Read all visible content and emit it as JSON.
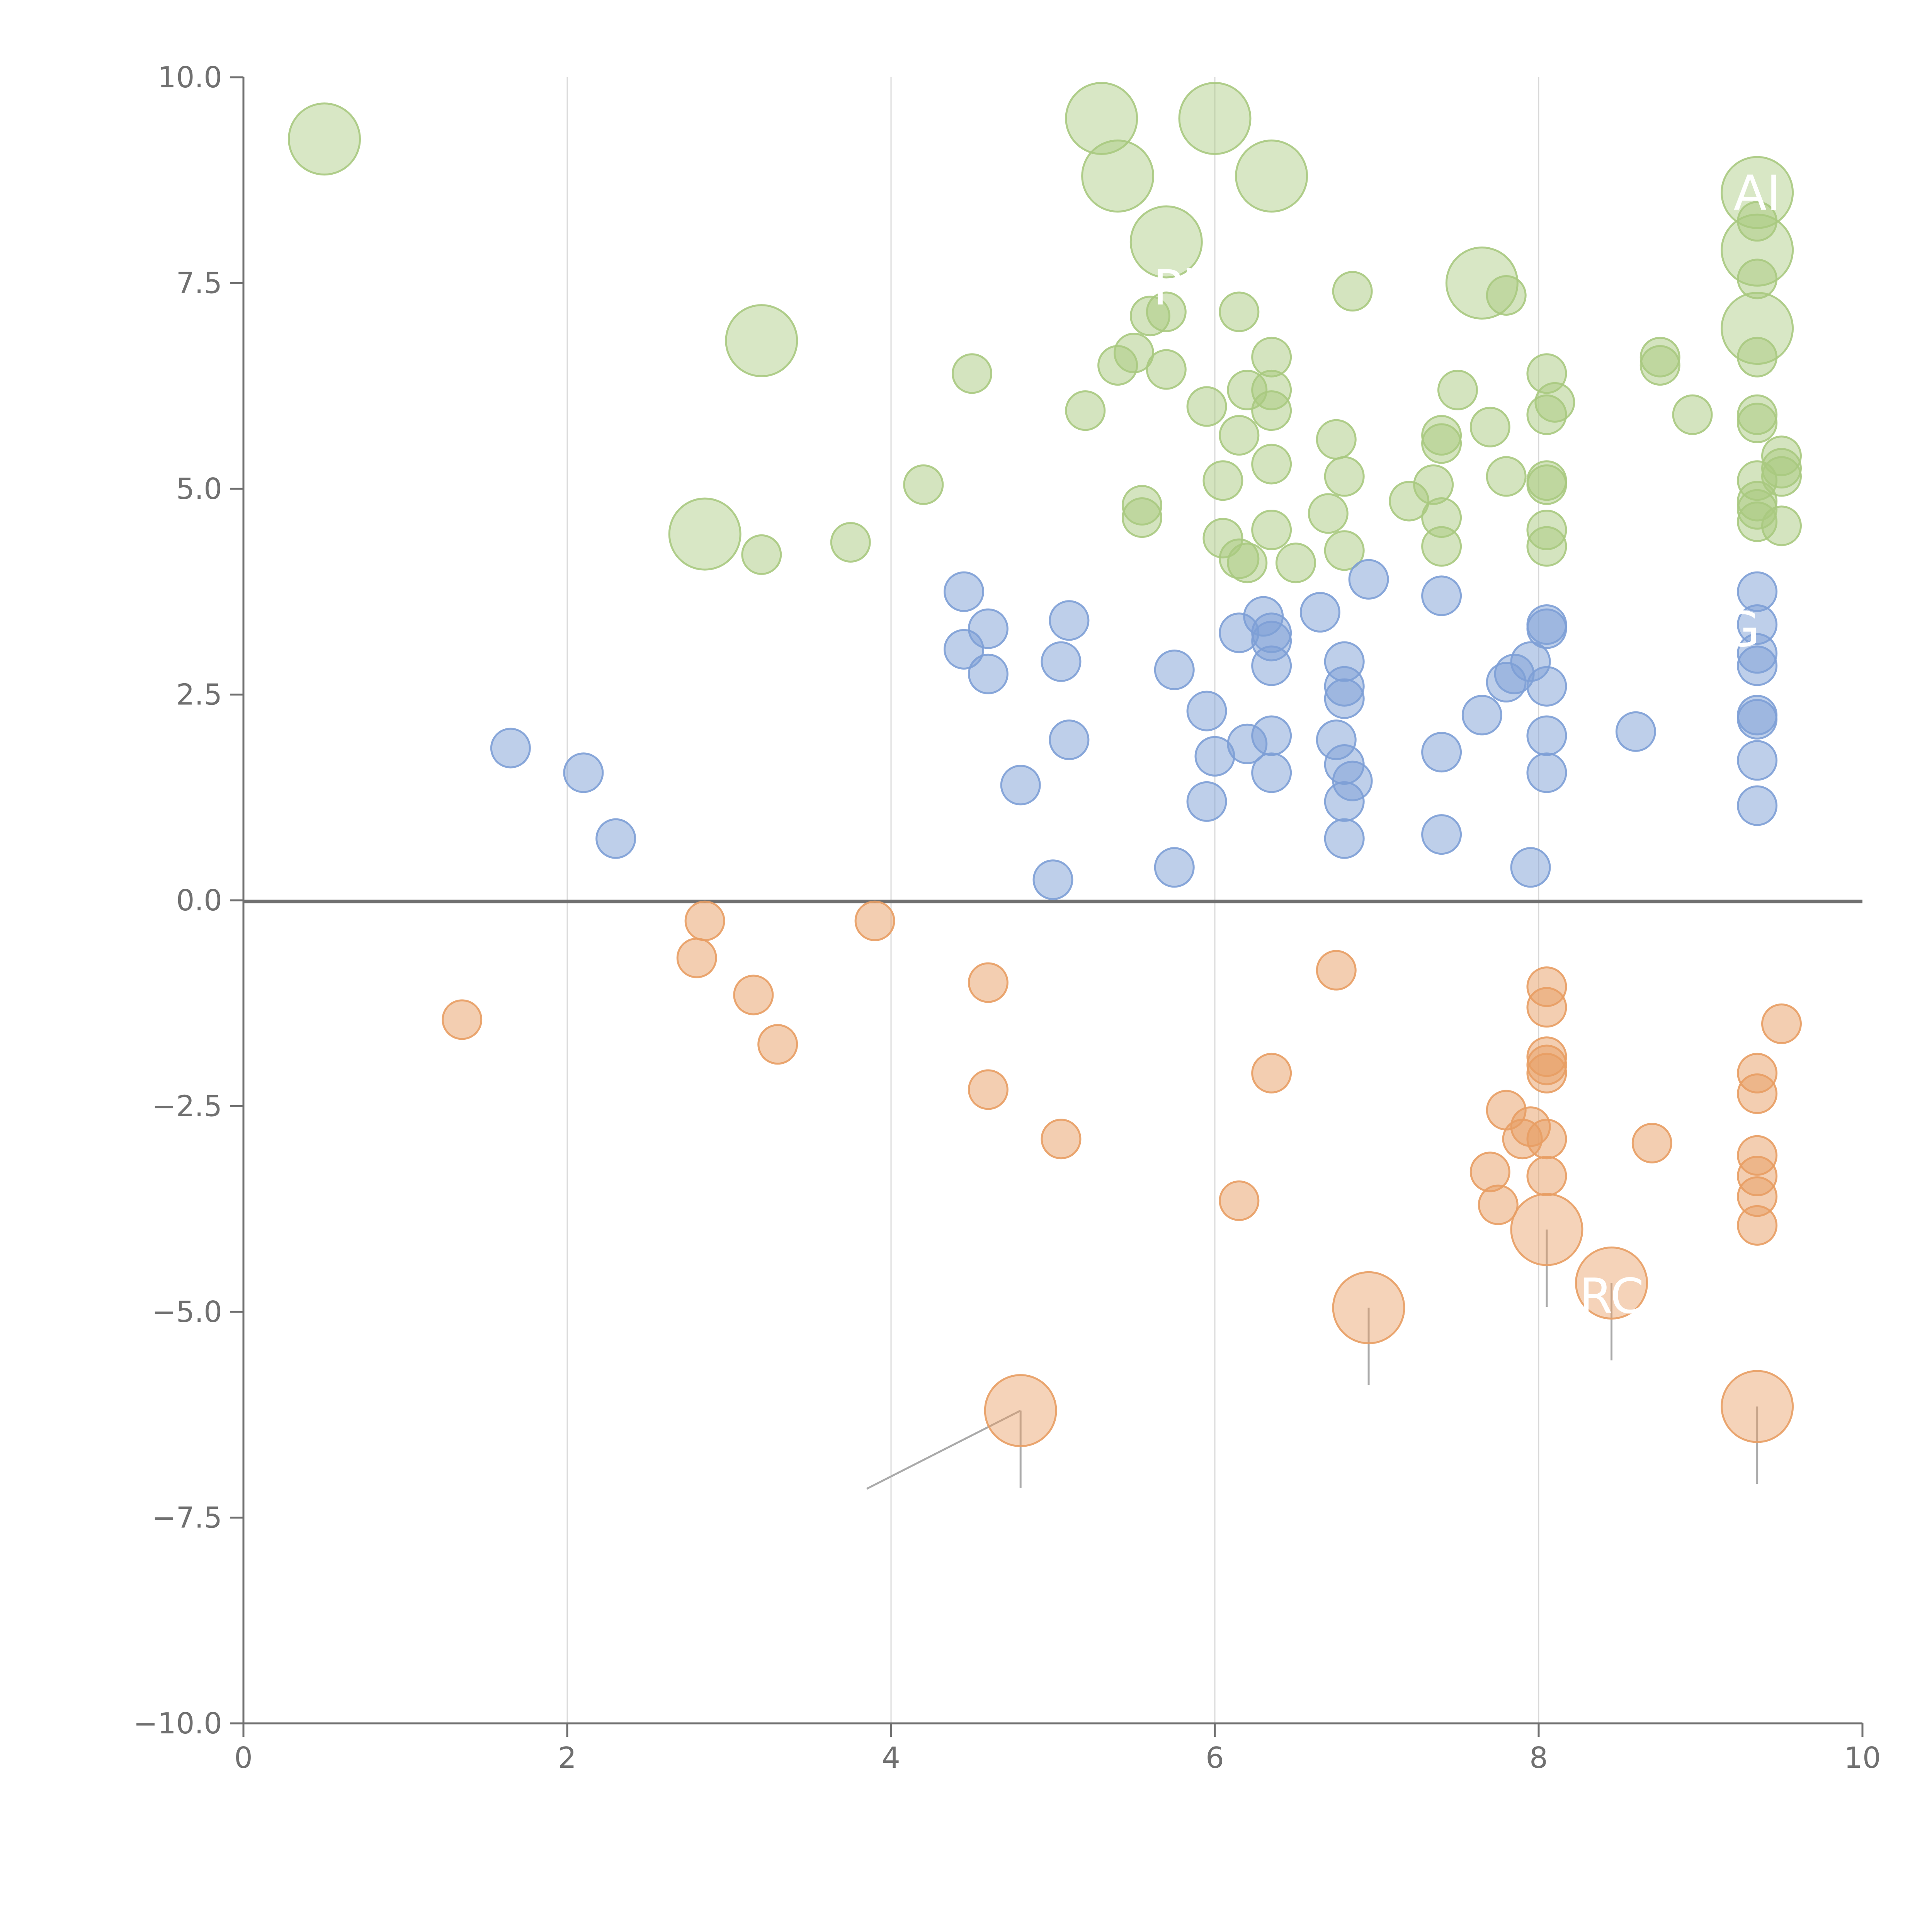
{
  "chart_data": {
    "type": "scatter",
    "title": "",
    "xlabel": "",
    "ylabel": "",
    "xlim": [
      0,
      10
    ],
    "ylim": [
      -10,
      10
    ],
    "x_ticks": [
      "0",
      "2",
      "4",
      "6",
      "8",
      "10"
    ],
    "y_ticks": [
      "10.0",
      "7.5",
      "5.0",
      "2.5",
      "0.0",
      "−2.5",
      "−5.0",
      "−7.5",
      "−10.0"
    ],
    "grid": "vertical lines at x ticks",
    "colors": {
      "green": "#a9c97f",
      "blue": "#7d9fd6",
      "orange": "#e89d63",
      "axis": "#707070",
      "zero_line": "#707070",
      "grid": "#d9d9d9"
    },
    "labels": [
      {
        "text": "AI",
        "x": 9.35,
        "y": 8.6
      },
      {
        "text": "RC",
        "x": 8.45,
        "y": -4.8
      },
      {
        "text": "Pl",
        "x": 5.75,
        "y": 7.45
      },
      {
        "text": "G",
        "x": 9.25,
        "y": 3.3
      }
    ],
    "series": [
      {
        "color": "green",
        "points": [
          [
            0.5,
            9.25,
            1
          ],
          [
            5.3,
            9.5,
            1
          ],
          [
            6.0,
            9.5,
            1
          ],
          [
            5.4,
            8.8,
            1
          ],
          [
            6.35,
            8.8,
            1
          ],
          [
            5.7,
            8.0,
            1
          ],
          [
            7.65,
            7.5,
            1
          ],
          [
            3.2,
            6.8,
            1
          ],
          [
            2.85,
            4.45,
            1
          ],
          [
            9.35,
            8.6,
            1
          ],
          [
            9.35,
            7.9,
            1
          ],
          [
            9.35,
            6.95,
            1
          ],
          [
            6.85,
            7.4,
            0
          ],
          [
            7.8,
            7.35,
            0
          ],
          [
            9.35,
            8.25,
            0
          ],
          [
            9.35,
            7.55,
            0
          ],
          [
            5.6,
            7.1,
            0
          ],
          [
            5.7,
            7.15,
            0
          ],
          [
            6.15,
            7.15,
            0
          ],
          [
            5.5,
            6.65,
            0
          ],
          [
            5.4,
            6.5,
            0
          ],
          [
            5.7,
            6.45,
            0
          ],
          [
            4.5,
            6.4,
            0
          ],
          [
            6.35,
            6.6,
            0
          ],
          [
            6.2,
            6.2,
            0
          ],
          [
            6.35,
            6.2,
            0
          ],
          [
            6.35,
            5.95,
            0
          ],
          [
            5.95,
            6.0,
            0
          ],
          [
            5.2,
            5.95,
            0
          ],
          [
            6.15,
            5.65,
            0
          ],
          [
            6.75,
            5.6,
            0
          ],
          [
            7.5,
            6.2,
            0
          ],
          [
            7.7,
            5.75,
            0
          ],
          [
            7.4,
            5.65,
            0
          ],
          [
            7.4,
            5.55,
            0
          ],
          [
            8.05,
            6.4,
            0
          ],
          [
            8.1,
            6.05,
            0
          ],
          [
            8.05,
            5.9,
            0
          ],
          [
            8.75,
            6.6,
            0
          ],
          [
            8.75,
            6.5,
            0
          ],
          [
            8.95,
            5.9,
            0
          ],
          [
            9.35,
            6.6,
            0
          ],
          [
            9.35,
            5.9,
            0
          ],
          [
            9.35,
            5.8,
            0
          ],
          [
            9.5,
            5.4,
            0
          ],
          [
            9.5,
            5.25,
            0
          ],
          [
            9.5,
            5.15,
            0
          ],
          [
            9.35,
            5.1,
            0
          ],
          [
            9.35,
            4.85,
            0
          ],
          [
            9.35,
            4.75,
            0
          ],
          [
            9.35,
            4.6,
            0
          ],
          [
            9.5,
            4.55,
            0
          ],
          [
            6.35,
            5.3,
            0
          ],
          [
            6.05,
            5.1,
            0
          ],
          [
            6.8,
            5.15,
            0
          ],
          [
            7.35,
            5.05,
            0
          ],
          [
            7.8,
            5.15,
            0
          ],
          [
            8.05,
            5.1,
            0
          ],
          [
            8.05,
            5.05,
            0
          ],
          [
            7.2,
            4.85,
            0
          ],
          [
            7.4,
            4.65,
            0
          ],
          [
            6.7,
            4.7,
            0
          ],
          [
            5.55,
            4.8,
            0
          ],
          [
            5.55,
            4.65,
            0
          ],
          [
            4.2,
            5.05,
            0
          ],
          [
            6.35,
            4.5,
            0
          ],
          [
            6.05,
            4.4,
            0
          ],
          [
            6.8,
            4.25,
            0
          ],
          [
            7.4,
            4.3,
            0
          ],
          [
            8.05,
            4.5,
            0
          ],
          [
            8.05,
            4.3,
            0
          ],
          [
            6.15,
            4.15,
            0
          ],
          [
            6.2,
            4.1,
            0
          ],
          [
            6.5,
            4.1,
            0
          ],
          [
            3.75,
            4.35,
            0
          ],
          [
            3.2,
            4.2,
            0
          ]
        ]
      },
      {
        "color": "blue",
        "points": [
          [
            4.45,
            3.75,
            0
          ],
          [
            4.6,
            3.3,
            0
          ],
          [
            4.45,
            3.05,
            0
          ],
          [
            4.6,
            2.75,
            0
          ],
          [
            5.1,
            3.4,
            0
          ],
          [
            5.05,
            2.9,
            0
          ],
          [
            5.1,
            1.95,
            0
          ],
          [
            4.8,
            1.4,
            0
          ],
          [
            5.0,
            0.25,
            0
          ],
          [
            1.65,
            1.85,
            0
          ],
          [
            2.1,
            1.55,
            0
          ],
          [
            2.3,
            0.75,
            0
          ],
          [
            5.75,
            2.8,
            0
          ],
          [
            5.95,
            2.3,
            0
          ],
          [
            6.0,
            1.75,
            0
          ],
          [
            5.95,
            1.2,
            0
          ],
          [
            5.75,
            0.4,
            0
          ],
          [
            6.15,
            3.25,
            0
          ],
          [
            6.3,
            3.45,
            0
          ],
          [
            6.35,
            3.25,
            0
          ],
          [
            6.35,
            3.15,
            0
          ],
          [
            6.35,
            2.85,
            0
          ],
          [
            6.2,
            1.9,
            0
          ],
          [
            6.35,
            2.0,
            0
          ],
          [
            6.35,
            1.55,
            0
          ],
          [
            6.65,
            3.5,
            0
          ],
          [
            6.95,
            3.9,
            0
          ],
          [
            6.8,
            2.9,
            0
          ],
          [
            6.8,
            2.6,
            0
          ],
          [
            6.8,
            2.45,
            0
          ],
          [
            6.75,
            1.95,
            0
          ],
          [
            6.8,
            1.65,
            0
          ],
          [
            6.85,
            1.45,
            0
          ],
          [
            6.8,
            1.2,
            0
          ],
          [
            6.8,
            0.75,
            0
          ],
          [
            7.4,
            3.7,
            0
          ],
          [
            7.4,
            1.8,
            0
          ],
          [
            7.4,
            0.8,
            0
          ],
          [
            7.65,
            2.25,
            0
          ],
          [
            7.85,
            2.75,
            0
          ],
          [
            7.8,
            2.65,
            0
          ],
          [
            7.95,
            2.9,
            0
          ],
          [
            8.05,
            3.35,
            0
          ],
          [
            8.05,
            3.3,
            0
          ],
          [
            8.05,
            2.6,
            0
          ],
          [
            8.05,
            2.0,
            0
          ],
          [
            8.05,
            1.55,
            0
          ],
          [
            7.95,
            0.4,
            0
          ],
          [
            8.6,
            2.05,
            0
          ],
          [
            9.35,
            3.75,
            0
          ],
          [
            9.35,
            3.35,
            0
          ],
          [
            9.35,
            3.0,
            0
          ],
          [
            9.35,
            2.85,
            0
          ],
          [
            9.35,
            2.25,
            0
          ],
          [
            9.35,
            2.2,
            0
          ],
          [
            9.35,
            1.7,
            0
          ],
          [
            9.35,
            1.15,
            0
          ]
        ]
      },
      {
        "color": "orange",
        "points": [
          [
            1.35,
            -1.45,
            0
          ],
          [
            2.85,
            -0.25,
            0
          ],
          [
            2.8,
            -0.7,
            0
          ],
          [
            3.15,
            -1.15,
            0
          ],
          [
            3.3,
            -1.75,
            0
          ],
          [
            3.9,
            -0.25,
            0
          ],
          [
            4.6,
            -1.0,
            0
          ],
          [
            4.6,
            -2.3,
            0
          ],
          [
            5.05,
            -2.9,
            0
          ],
          [
            6.35,
            -2.1,
            0
          ],
          [
            6.15,
            -3.65,
            0
          ],
          [
            6.75,
            -0.85,
            0
          ],
          [
            8.05,
            -1.05,
            0
          ],
          [
            8.05,
            -1.3,
            0
          ],
          [
            8.05,
            -1.9,
            0
          ],
          [
            8.05,
            -2.0,
            0
          ],
          [
            8.05,
            -2.1,
            0
          ],
          [
            7.8,
            -2.55,
            0
          ],
          [
            7.95,
            -2.75,
            0
          ],
          [
            7.9,
            -2.9,
            0
          ],
          [
            8.05,
            -2.9,
            0
          ],
          [
            7.7,
            -3.3,
            0
          ],
          [
            8.05,
            -3.35,
            0
          ],
          [
            7.75,
            -3.7,
            0
          ],
          [
            8.7,
            -2.95,
            0
          ],
          [
            9.5,
            -1.5,
            0
          ],
          [
            9.35,
            -2.1,
            0
          ],
          [
            9.35,
            -2.35,
            0
          ],
          [
            9.35,
            -3.1,
            0
          ],
          [
            9.35,
            -3.35,
            0
          ],
          [
            9.35,
            -3.6,
            0
          ],
          [
            9.35,
            -3.95,
            0
          ],
          [
            8.05,
            -4.0,
            1
          ],
          [
            8.45,
            -4.65,
            1
          ],
          [
            6.95,
            -4.95,
            1
          ],
          [
            4.8,
            -6.2,
            1
          ],
          [
            9.35,
            -6.15,
            1
          ]
        ]
      }
    ]
  }
}
